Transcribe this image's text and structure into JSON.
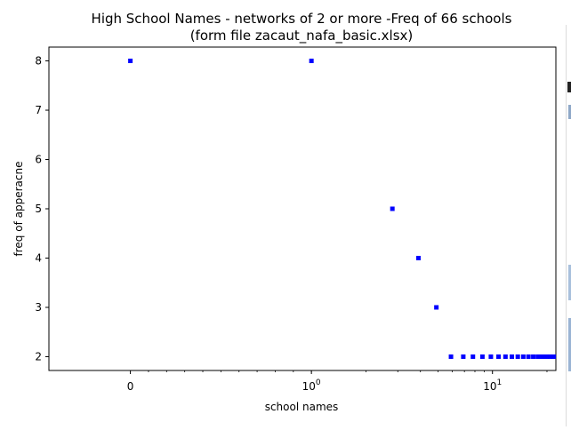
{
  "chart_data": {
    "type": "scatter",
    "title": "High School Names - networks of 2 or more -Freq of 66 schools",
    "subtitle": "(form file zacaut_nafa_basic.xlsx)",
    "xlabel": "school names",
    "ylabel": "freq of apperacne",
    "xscale": "symlog",
    "xlim": [
      -0.45,
      22.4
    ],
    "ylim": [
      1.72,
      8.28
    ],
    "xticks": [
      {
        "value": 0,
        "base": "0",
        "exp": ""
      },
      {
        "value": 1,
        "base": "10",
        "exp": "0"
      },
      {
        "value": 10,
        "base": "10",
        "exp": "1"
      }
    ],
    "yticks": [
      2,
      3,
      4,
      5,
      6,
      7,
      8
    ],
    "grid": false,
    "marker_color": "#0000ff",
    "points": [
      {
        "x": 0,
        "y": 8
      },
      {
        "x": 1,
        "y": 8
      },
      {
        "x": 2.8,
        "y": 5
      },
      {
        "x": 3.9,
        "y": 4
      },
      {
        "x": 4.9,
        "y": 3
      },
      {
        "x": 5.9,
        "y": 2
      },
      {
        "x": 6.9,
        "y": 2
      },
      {
        "x": 7.8,
        "y": 2
      },
      {
        "x": 8.8,
        "y": 2
      },
      {
        "x": 9.8,
        "y": 2
      },
      {
        "x": 10.8,
        "y": 2
      },
      {
        "x": 11.8,
        "y": 2
      },
      {
        "x": 12.8,
        "y": 2
      },
      {
        "x": 13.8,
        "y": 2
      },
      {
        "x": 14.8,
        "y": 2
      },
      {
        "x": 15.8,
        "y": 2
      },
      {
        "x": 16.8,
        "y": 2
      },
      {
        "x": 17.8,
        "y": 2
      },
      {
        "x": 18.8,
        "y": 2
      },
      {
        "x": 19.8,
        "y": 2
      },
      {
        "x": 20.8,
        "y": 2
      },
      {
        "x": 21.8,
        "y": 2
      }
    ]
  }
}
